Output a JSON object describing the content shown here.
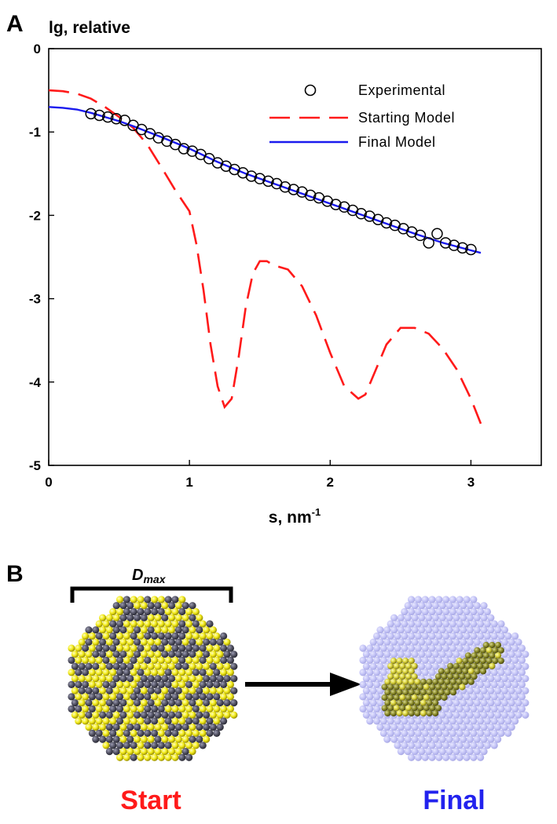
{
  "panel_a": {
    "letter": "A"
  },
  "panel_b": {
    "letter": "B",
    "dmax_label": "D",
    "dmax_subscript": "max",
    "start_label": "Start",
    "final_label": "Final",
    "colors": {
      "start": "#ff1a1a",
      "final": "#2222ee",
      "yellow_bead": "#f2ea1a",
      "grey_bead": "#555566",
      "ghost_bead": "#b8b8f4",
      "olive_bead": "#8a8a2a"
    }
  },
  "chart_data": {
    "type": "line",
    "title": "",
    "xlabel": "s, nm",
    "xlabel_superscript": "-1",
    "ylabel": "lg, relative",
    "xlim": [
      0,
      3.5
    ],
    "ylim": [
      -5,
      0
    ],
    "xticks": [
      0,
      1,
      2,
      3
    ],
    "yticks": [
      0,
      -1,
      -2,
      -3,
      -4,
      -5
    ],
    "grid": false,
    "legend": "top-right",
    "series": [
      {
        "name": "Experimental",
        "style": "open-circle",
        "color": "#000000",
        "x": [
          0.3,
          0.36,
          0.42,
          0.48,
          0.54,
          0.6,
          0.66,
          0.72,
          0.78,
          0.84,
          0.9,
          0.96,
          1.02,
          1.08,
          1.14,
          1.2,
          1.26,
          1.32,
          1.38,
          1.44,
          1.5,
          1.56,
          1.62,
          1.68,
          1.74,
          1.8,
          1.86,
          1.92,
          1.98,
          2.04,
          2.1,
          2.16,
          2.22,
          2.28,
          2.34,
          2.4,
          2.46,
          2.52,
          2.58,
          2.64,
          2.7,
          2.76,
          2.82,
          2.88,
          2.94,
          3.0
        ],
        "y": [
          -0.78,
          -0.8,
          -0.82,
          -0.84,
          -0.86,
          -0.92,
          -0.97,
          -1.02,
          -1.07,
          -1.11,
          -1.15,
          -1.2,
          -1.23,
          -1.27,
          -1.32,
          -1.37,
          -1.41,
          -1.45,
          -1.49,
          -1.53,
          -1.56,
          -1.59,
          -1.62,
          -1.66,
          -1.69,
          -1.72,
          -1.76,
          -1.79,
          -1.83,
          -1.87,
          -1.9,
          -1.94,
          -1.98,
          -2.01,
          -2.05,
          -2.09,
          -2.12,
          -2.16,
          -2.2,
          -2.24,
          -2.33,
          -2.22,
          -2.33,
          -2.36,
          -2.39,
          -2.41
        ]
      },
      {
        "name": "Starting Model",
        "style": "dashed",
        "color": "#ff1a1a",
        "x": [
          0,
          0.1,
          0.2,
          0.3,
          0.4,
          0.5,
          0.6,
          0.7,
          0.8,
          0.9,
          1.0,
          1.05,
          1.1,
          1.15,
          1.2,
          1.25,
          1.3,
          1.35,
          1.4,
          1.45,
          1.5,
          1.55,
          1.6,
          1.7,
          1.8,
          1.9,
          2.0,
          2.1,
          2.2,
          2.25,
          2.3,
          2.4,
          2.5,
          2.6,
          2.7,
          2.8,
          2.9,
          3.0,
          3.07
        ],
        "y": [
          -0.5,
          -0.51,
          -0.54,
          -0.6,
          -0.7,
          -0.82,
          -0.95,
          -1.15,
          -1.42,
          -1.7,
          -1.95,
          -2.35,
          -2.9,
          -3.55,
          -4.05,
          -4.3,
          -4.2,
          -3.7,
          -3.1,
          -2.7,
          -2.55,
          -2.55,
          -2.6,
          -2.65,
          -2.85,
          -3.2,
          -3.65,
          -4.05,
          -4.2,
          -4.15,
          -3.95,
          -3.55,
          -3.35,
          -3.35,
          -3.42,
          -3.6,
          -3.85,
          -4.2,
          -4.5
        ]
      },
      {
        "name": "Final Model",
        "style": "solid",
        "color": "#1a1aee",
        "x": [
          0,
          0.1,
          0.2,
          0.3,
          0.4,
          0.5,
          0.6,
          0.8,
          1.0,
          1.2,
          1.4,
          1.6,
          1.8,
          2.0,
          2.2,
          2.4,
          2.6,
          2.8,
          3.0,
          3.07
        ],
        "y": [
          -0.7,
          -0.71,
          -0.73,
          -0.77,
          -0.82,
          -0.87,
          -0.93,
          -1.06,
          -1.2,
          -1.36,
          -1.5,
          -1.62,
          -1.74,
          -1.86,
          -1.98,
          -2.1,
          -2.22,
          -2.33,
          -2.42,
          -2.45
        ]
      }
    ]
  }
}
